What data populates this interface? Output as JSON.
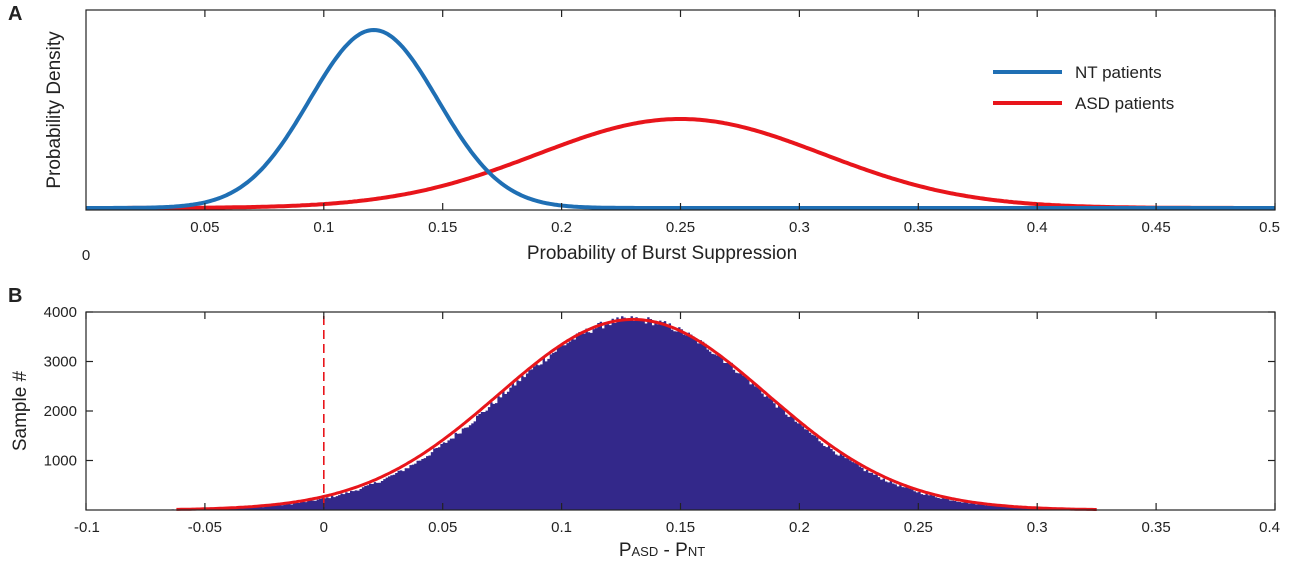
{
  "colors": {
    "nt": "#1f6fb4",
    "asd": "#e8151b",
    "histogram": "#33288a",
    "axis": "#222222"
  },
  "chart_data": [
    {
      "panel_label": "A",
      "type": "line",
      "xlabel": "Probability of Burst Suppression",
      "ylabel": "Probability Density",
      "xlim": [
        0,
        0.5
      ],
      "y_ticks_shown": false,
      "x_ticks": [
        0.05,
        0.1,
        0.15,
        0.2,
        0.25,
        0.3,
        0.35,
        0.4,
        0.45,
        0.5
      ],
      "x_tick_labels": [
        "0.05",
        "0.1",
        "0.15",
        "0.2",
        "0.25",
        "0.3",
        "0.35",
        "0.4",
        "0.45",
        "0.5"
      ],
      "x_origin_label": "0",
      "legend_position": "top-right",
      "grid": false,
      "series": [
        {
          "name": "NT patients",
          "color": "#1f6fb4",
          "distribution": "normal",
          "mean": 0.121,
          "sd": 0.027,
          "peak_relative": 1.0
        },
        {
          "name": "ASD patients",
          "color": "#e8151b",
          "distribution": "normal",
          "mean": 0.25,
          "sd": 0.06,
          "peak_relative": 0.5
        }
      ]
    },
    {
      "panel_label": "B",
      "type": "bar",
      "subtype": "histogram",
      "xlabel_main_1": "P",
      "xlabel_sub_1": "ASD",
      "xlabel_sep": " - P",
      "xlabel_sub_2": "NT",
      "ylabel": "Sample #",
      "xlim": [
        -0.1,
        0.4
      ],
      "ylim": [
        0,
        4000
      ],
      "x_ticks": [
        -0.1,
        -0.05,
        0,
        0.05,
        0.1,
        0.15,
        0.2,
        0.25,
        0.3,
        0.35,
        0.4
      ],
      "x_tick_labels": [
        "-0.1",
        "-0.05",
        "0",
        "0.05",
        "0.1",
        "0.15",
        "0.2",
        "0.25",
        "0.3",
        "0.35",
        "0.4"
      ],
      "y_ticks": [
        1000,
        2000,
        3000,
        4000
      ],
      "y_tick_labels": [
        "1000",
        "2000",
        "3000",
        "4000"
      ],
      "histogram": {
        "color": "#33288a",
        "mean": 0.13,
        "sd": 0.055,
        "peak": 3850,
        "bin_width": 0.001
      },
      "fit_curve": {
        "color": "#e8151b",
        "mean": 0.13,
        "sd": 0.0565,
        "peak": 3850,
        "x_range": [
          -0.062,
          0.325
        ]
      },
      "reference_line": {
        "x": 0,
        "style": "dashed",
        "color": "#e8151b"
      },
      "grid": false
    }
  ]
}
